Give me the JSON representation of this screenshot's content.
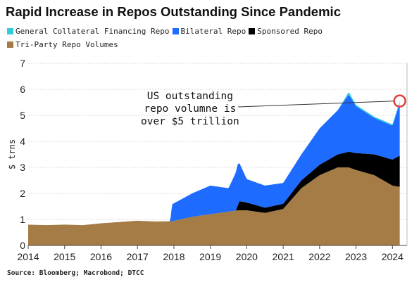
{
  "title": "Rapid Increase in Repos Outstanding Since Pandemic",
  "source": "Source: Bloomberg; Macrobond; DTCC",
  "annotation": {
    "lines": [
      "US outstanding",
      "repo volumne is",
      "over $5 trillion"
    ]
  },
  "chart_data": {
    "type": "area",
    "stacked": true,
    "ylabel": "$ trns",
    "xlabel": "",
    "ylim": [
      0,
      7
    ],
    "yticks": [
      0,
      1,
      2,
      3,
      4,
      5,
      6,
      7
    ],
    "xlim": [
      2014.0,
      2024.4
    ],
    "xticks": [
      2014,
      2015,
      2016,
      2017,
      2018,
      2019,
      2020,
      2021,
      2022,
      2023,
      2024
    ],
    "xtick_labels": [
      "2014",
      "2015",
      "2016",
      "2017",
      "2018",
      "2019",
      "2020",
      "2021",
      "2022",
      "2023",
      "2024"
    ],
    "grid": "horizontal",
    "legend_position": "top",
    "series": [
      {
        "name": "Tri-Party Repo Volumes",
        "color": "#A57C45",
        "x": [
          2014.0,
          2014.5,
          2015.0,
          2015.5,
          2016.0,
          2016.5,
          2017.0,
          2017.5,
          2017.95,
          2018.5,
          2019.0,
          2019.5,
          2019.75,
          2020.0,
          2020.5,
          2021.0,
          2021.5,
          2022.0,
          2022.5,
          2022.8,
          2023.0,
          2023.5,
          2024.0,
          2024.2
        ],
        "values": [
          0.8,
          0.78,
          0.8,
          0.78,
          0.85,
          0.9,
          0.95,
          0.92,
          0.93,
          1.1,
          1.2,
          1.3,
          1.35,
          1.35,
          1.25,
          1.4,
          2.2,
          2.7,
          3.0,
          3.0,
          2.9,
          2.7,
          2.3,
          2.25
        ]
      },
      {
        "name": "Sponsored Repo",
        "color": "#000000",
        "x": [
          2014.0,
          2019.7,
          2019.8,
          2020.0,
          2020.5,
          2021.0,
          2021.5,
          2022.0,
          2022.5,
          2022.8,
          2023.0,
          2023.5,
          2024.0,
          2024.2
        ],
        "values": [
          0.0,
          0.0,
          0.35,
          0.3,
          0.2,
          0.2,
          0.3,
          0.4,
          0.5,
          0.6,
          0.65,
          0.8,
          1.0,
          1.2
        ]
      },
      {
        "name": "Bilateral Repo",
        "color": "#1E6BFF",
        "x": [
          2014.0,
          2017.9,
          2017.95,
          2018.5,
          2019.0,
          2019.5,
          2019.75,
          2020.0,
          2020.5,
          2021.0,
          2021.5,
          2022.0,
          2022.5,
          2022.8,
          2023.0,
          2023.5,
          2024.0,
          2024.2
        ],
        "values": [
          0.0,
          0.0,
          0.65,
          0.9,
          1.1,
          0.9,
          1.6,
          0.9,
          0.85,
          0.8,
          1.0,
          1.4,
          1.7,
          2.2,
          1.8,
          1.4,
          1.3,
          2.0
        ]
      },
      {
        "name": "General Collateral Financing Repo",
        "color": "#33CCDD",
        "x": [
          2014.0,
          2022.5,
          2022.8,
          2023.0,
          2023.5,
          2024.0,
          2024.2
        ],
        "values": [
          0.0,
          0.0,
          0.1,
          0.05,
          0.05,
          0.05,
          0.1
        ]
      }
    ]
  },
  "colors": {
    "highlight_circle": "#E04040",
    "grid": "#D8D8D8",
    "axis": "#444444"
  }
}
